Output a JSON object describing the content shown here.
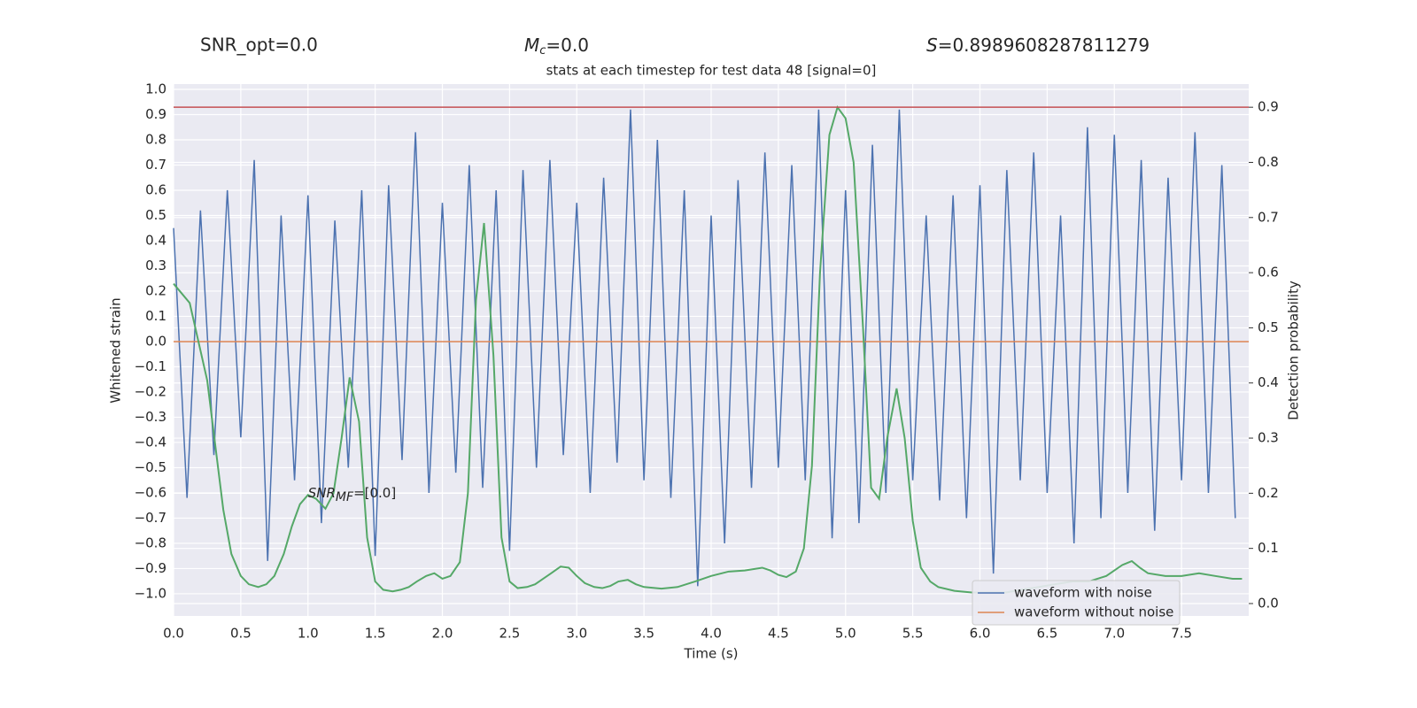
{
  "chart_data": {
    "type": "line",
    "headers": {
      "snr_opt": "SNR_opt=0.0",
      "mc": {
        "base": "M",
        "sub": "c",
        "rest": "=0.0"
      },
      "s": {
        "base": "S",
        "rest": "=0.8989608287811279"
      }
    },
    "title": "stats at each timestep for test data 48 [signal=0]",
    "annotation": {
      "base": "SNR",
      "sub": "MF",
      "rest": "=[0.0]",
      "x": 1.0,
      "y": -0.6
    },
    "xlabel": "Time (s)",
    "ylabel": "Whitened strain",
    "y2label": "Detection probability",
    "xlim": [
      0,
      8.0
    ],
    "ylim": [
      -1.088,
      1.021
    ],
    "y2lim": [
      -0.0225,
      0.942
    ],
    "xticks": [
      {
        "value": 0,
        "label": "0.0"
      },
      {
        "value": 0.5,
        "label": "0.5"
      },
      {
        "value": 1,
        "label": "1.0"
      },
      {
        "value": 1.5,
        "label": "1.5"
      },
      {
        "value": 2,
        "label": "2.0"
      },
      {
        "value": 2.5,
        "label": "2.5"
      },
      {
        "value": 3,
        "label": "3.0"
      },
      {
        "value": 3.5,
        "label": "3.5"
      },
      {
        "value": 4,
        "label": "4.0"
      },
      {
        "value": 4.5,
        "label": "4.5"
      },
      {
        "value": 5,
        "label": "5.0"
      },
      {
        "value": 5.5,
        "label": "5.5"
      },
      {
        "value": 6,
        "label": "6.0"
      },
      {
        "value": 6.5,
        "label": "6.5"
      },
      {
        "value": 7,
        "label": "7.0"
      },
      {
        "value": 7.5,
        "label": "7.5"
      }
    ],
    "yticks": [
      {
        "value": -1,
        "label": "−1.0"
      },
      {
        "value": -0.9,
        "label": "−0.9"
      },
      {
        "value": -0.8,
        "label": "−0.8"
      },
      {
        "value": -0.7,
        "label": "−0.7"
      },
      {
        "value": -0.6,
        "label": "−0.6"
      },
      {
        "value": -0.5,
        "label": "−0.5"
      },
      {
        "value": -0.4,
        "label": "−0.4"
      },
      {
        "value": -0.3,
        "label": "−0.3"
      },
      {
        "value": -0.2,
        "label": "−0.2"
      },
      {
        "value": -0.1,
        "label": "−0.1"
      },
      {
        "value": 0,
        "label": "0.0"
      },
      {
        "value": 0.1,
        "label": "0.1"
      },
      {
        "value": 0.2,
        "label": "0.2"
      },
      {
        "value": 0.3,
        "label": "0.3"
      },
      {
        "value": 0.4,
        "label": "0.4"
      },
      {
        "value": 0.5,
        "label": "0.5"
      },
      {
        "value": 0.6,
        "label": "0.6"
      },
      {
        "value": 0.7,
        "label": "0.7"
      },
      {
        "value": 0.8,
        "label": "0.8"
      },
      {
        "value": 0.9,
        "label": "0.9"
      },
      {
        "value": 1,
        "label": "1.0"
      }
    ],
    "y2ticks": [
      {
        "value": 0,
        "label": "0.0"
      },
      {
        "value": 0.1,
        "label": "0.1"
      },
      {
        "value": 0.2,
        "label": "0.2"
      },
      {
        "value": 0.3,
        "label": "0.3"
      },
      {
        "value": 0.4,
        "label": "0.4"
      },
      {
        "value": 0.5,
        "label": "0.5"
      },
      {
        "value": 0.6,
        "label": "0.6"
      },
      {
        "value": 0.7,
        "label": "0.7"
      },
      {
        "value": 0.8,
        "label": "0.8"
      },
      {
        "value": 0.9,
        "label": "0.9"
      }
    ],
    "grid": true,
    "legend": "lower right",
    "hlines": [
      {
        "value": 0.9,
        "axis": "y2",
        "color": "#c44e52"
      }
    ],
    "series": [
      {
        "name": "waveform with noise",
        "color": "#4c72b0",
        "x": [
          0,
          0.1,
          0.2,
          0.3,
          0.4,
          0.5,
          0.6,
          0.7,
          0.8,
          0.9,
          1,
          1.1,
          1.2,
          1.3,
          1.4,
          1.5,
          1.6,
          1.7,
          1.8,
          1.9,
          2,
          2.1,
          2.2,
          2.3,
          2.4,
          2.5,
          2.6,
          2.7,
          2.8,
          2.9,
          3,
          3.1,
          3.2,
          3.3,
          3.4,
          3.5,
          3.6,
          3.7,
          3.8,
          3.9,
          4,
          4.1,
          4.2,
          4.3,
          4.4,
          4.5,
          4.6,
          4.7,
          4.8,
          4.9,
          5,
          5.1,
          5.2,
          5.3,
          5.4,
          5.5,
          5.6,
          5.7,
          5.8,
          5.9,
          6,
          6.1,
          6.2,
          6.3,
          6.4,
          6.5,
          6.6,
          6.7,
          6.8,
          6.9,
          7,
          7.1,
          7.2,
          7.3,
          7.4,
          7.5,
          7.6,
          7.7,
          7.8,
          7.9
        ],
        "values": [
          0.45,
          -0.62,
          0.52,
          -0.45,
          0.6,
          -0.38,
          0.72,
          -0.87,
          0.5,
          -0.55,
          0.58,
          -0.72,
          0.48,
          -0.5,
          0.6,
          -0.85,
          0.62,
          -0.47,
          0.83,
          -0.6,
          0.55,
          -0.52,
          0.7,
          -0.58,
          0.6,
          -0.83,
          0.68,
          -0.5,
          0.72,
          -0.45,
          0.55,
          -0.6,
          0.65,
          -0.48,
          0.92,
          -0.55,
          0.8,
          -0.62,
          0.6,
          -0.97,
          0.5,
          -0.8,
          0.64,
          -0.58,
          0.75,
          -0.5,
          0.7,
          -0.55,
          0.92,
          -0.78,
          0.6,
          -0.72,
          0.78,
          -0.6,
          0.92,
          -0.55,
          0.5,
          -0.63,
          0.58,
          -0.7,
          0.62,
          -0.92,
          0.68,
          -0.55,
          0.75,
          -0.6,
          0.5,
          -0.8,
          0.85,
          -0.7,
          0.82,
          -0.6,
          0.72,
          -0.75,
          0.65,
          -0.55,
          0.83,
          -0.6,
          0.7,
          -0.7
        ]
      },
      {
        "name": "waveform without noise",
        "color": "#dd8452",
        "x": [
          0,
          8.0
        ],
        "values": [
          0,
          0
        ]
      },
      {
        "color": "#55a868",
        "axis": "y2",
        "x": [
          0,
          0.12,
          0.25,
          0.37,
          0.43,
          0.5,
          0.56,
          0.63,
          0.69,
          0.75,
          0.82,
          0.88,
          0.94,
          1.0,
          1.06,
          1.13,
          1.19,
          1.25,
          1.31,
          1.38,
          1.44,
          1.5,
          1.56,
          1.63,
          1.69,
          1.75,
          1.81,
          1.88,
          1.94,
          2.0,
          2.06,
          2.13,
          2.19,
          2.25,
          2.31,
          2.38,
          2.44,
          2.5,
          2.56,
          2.63,
          2.69,
          2.75,
          2.81,
          2.88,
          2.94,
          3.0,
          3.06,
          3.13,
          3.19,
          3.25,
          3.31,
          3.38,
          3.44,
          3.5,
          3.63,
          3.75,
          3.88,
          4.0,
          4.13,
          4.25,
          4.38,
          4.44,
          4.5,
          4.56,
          4.63,
          4.69,
          4.75,
          4.81,
          4.88,
          4.94,
          5.0,
          5.06,
          5.13,
          5.19,
          5.25,
          5.31,
          5.38,
          5.44,
          5.5,
          5.56,
          5.63,
          5.69,
          5.81,
          5.94,
          6.06,
          6.19,
          6.31,
          6.44,
          6.56,
          6.69,
          6.81,
          6.94,
          7.06,
          7.13,
          7.19,
          7.25,
          7.38,
          7.5,
          7.63,
          7.75,
          7.88,
          7.95
        ],
        "values": [
          0.58,
          0.545,
          0.405,
          0.17,
          0.09,
          0.05,
          0.035,
          0.03,
          0.035,
          0.05,
          0.09,
          0.14,
          0.18,
          0.197,
          0.19,
          0.172,
          0.2,
          0.3,
          0.41,
          0.33,
          0.12,
          0.04,
          0.025,
          0.022,
          0.025,
          0.03,
          0.04,
          0.05,
          0.055,
          0.045,
          0.05,
          0.075,
          0.2,
          0.55,
          0.69,
          0.45,
          0.12,
          0.04,
          0.028,
          0.03,
          0.035,
          0.045,
          0.055,
          0.067,
          0.065,
          0.05,
          0.037,
          0.03,
          0.028,
          0.032,
          0.04,
          0.043,
          0.035,
          0.03,
          0.027,
          0.03,
          0.04,
          0.05,
          0.058,
          0.06,
          0.065,
          0.06,
          0.052,
          0.048,
          0.058,
          0.1,
          0.25,
          0.6,
          0.85,
          0.9,
          0.88,
          0.8,
          0.5,
          0.21,
          0.19,
          0.3,
          0.39,
          0.3,
          0.15,
          0.065,
          0.04,
          0.03,
          0.023,
          0.02,
          0.02,
          0.02,
          0.025,
          0.03,
          0.035,
          0.04,
          0.04,
          0.05,
          0.07,
          0.077,
          0.065,
          0.055,
          0.05,
          0.05,
          0.055,
          0.05,
          0.045,
          0.045
        ]
      }
    ]
  }
}
